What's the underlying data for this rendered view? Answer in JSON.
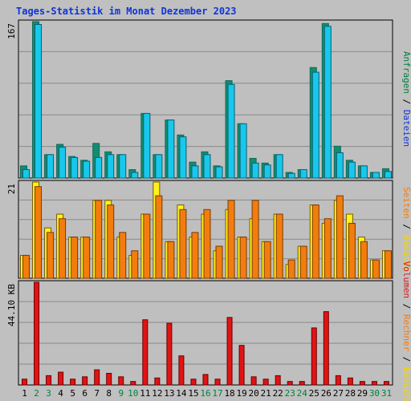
{
  "colors": {
    "frame": "#c0c0c0",
    "panel": "#bfbfbf",
    "grid": "#8a8a8a",
    "title": "#0d34d8",
    "anfragen_dark": "#0e6b5a",
    "anfragen_fill": "#138c70",
    "dateien_fill": "#18c8ec",
    "besuche_fill": "#fff21a",
    "seiten_fill": "#f27d0f",
    "volumen_fill": "#e01414",
    "weekend_label": "#008040",
    "weekday_label": "#000000",
    "label_anfragen": "#008040",
    "label_dateien": "#0d34d8",
    "label_seiten": "#f27d0f",
    "label_besuche": "#f2d40f",
    "label_rechner": "#f27d0f",
    "label_volumen": "#e01414"
  },
  "chart_data": [
    {
      "type": "bar",
      "title": "Tages-Statistik im Monat Dezember 2023",
      "ylim": [
        0,
        167
      ],
      "ylabel": "167",
      "categories": [
        "1",
        "2",
        "3",
        "4",
        "5",
        "6",
        "7",
        "8",
        "9",
        "10",
        "11",
        "12",
        "13",
        "14",
        "15",
        "16",
        "17",
        "18",
        "19",
        "20",
        "21",
        "22",
        "23",
        "24",
        "25",
        "26",
        "27",
        "28",
        "29",
        "30",
        "31"
      ],
      "series": [
        {
          "name": "Anfragen",
          "values": [
            13,
            167,
            25,
            36,
            23,
            19,
            37,
            28,
            25,
            9,
            69,
            25,
            62,
            46,
            17,
            28,
            13,
            104,
            58,
            21,
            16,
            25,
            6,
            9,
            118,
            165,
            34,
            19,
            13,
            6,
            10
          ]
        },
        {
          "name": "Dateien",
          "values": [
            9,
            164,
            25,
            33,
            22,
            18,
            22,
            25,
            25,
            6,
            69,
            25,
            62,
            44,
            13,
            25,
            12,
            100,
            58,
            16,
            14,
            25,
            5,
            9,
            113,
            162,
            27,
            17,
            13,
            6,
            7
          ]
        }
      ],
      "legend": "right"
    },
    {
      "type": "bar",
      "ylim": [
        0,
        21
      ],
      "ylabel": "21",
      "categories": [
        "1",
        "2",
        "3",
        "4",
        "5",
        "6",
        "7",
        "8",
        "9",
        "10",
        "11",
        "12",
        "13",
        "14",
        "15",
        "16",
        "17",
        "18",
        "19",
        "20",
        "21",
        "22",
        "23",
        "24",
        "25",
        "26",
        "27",
        "28",
        "29",
        "30",
        "31"
      ],
      "series": [
        {
          "name": "Besuche",
          "values": [
            5,
            21,
            11,
            14,
            9,
            9,
            17,
            17,
            9,
            5,
            14,
            21,
            8,
            16,
            9,
            14,
            6,
            15,
            9,
            13,
            8,
            14,
            3,
            7,
            16,
            12,
            17,
            14,
            9,
            4,
            6
          ]
        },
        {
          "name": "Seiten",
          "values": [
            5,
            20,
            10,
            13,
            9,
            9,
            17,
            16,
            10,
            6,
            14,
            18,
            8,
            15,
            10,
            15,
            7,
            17,
            9,
            17,
            8,
            14,
            4,
            7,
            16,
            13,
            18,
            12,
            8,
            4,
            6
          ]
        }
      ],
      "legend": "right"
    },
    {
      "type": "bar",
      "ylim": [
        0,
        44.1
      ],
      "ylabel": "44.10 KB",
      "categories": [
        "1",
        "2",
        "3",
        "4",
        "5",
        "6",
        "7",
        "8",
        "9",
        "10",
        "11",
        "12",
        "13",
        "14",
        "15",
        "16",
        "17",
        "18",
        "19",
        "20",
        "21",
        "22",
        "23",
        "24",
        "25",
        "26",
        "27",
        "28",
        "29",
        "30",
        "31"
      ],
      "series": [
        {
          "name": "Volumen",
          "values": [
            2.5,
            44.1,
            4.0,
            5.5,
            2.5,
            3.5,
            6.5,
            5.0,
            3.5,
            1.5,
            28.0,
            3.0,
            26.5,
            12.5,
            2.5,
            4.5,
            2.5,
            29.0,
            17.0,
            3.5,
            2.5,
            4.0,
            1.5,
            1.5,
            24.5,
            31.5,
            4.0,
            3.0,
            1.5,
            1.5,
            1.5
          ]
        }
      ],
      "legend": "right"
    }
  ],
  "axis": {
    "weekend_days": [
      2,
      3,
      9,
      10,
      16,
      17,
      23,
      24,
      30,
      31
    ]
  },
  "legend_text": {
    "top": [
      "Anfragen",
      " / ",
      "Dateien"
    ],
    "mid": [
      "Seiten",
      " / ",
      "Besuche"
    ],
    "bot": [
      "Volumen",
      " / ",
      "Rechner",
      " / ",
      "Besuche"
    ]
  }
}
